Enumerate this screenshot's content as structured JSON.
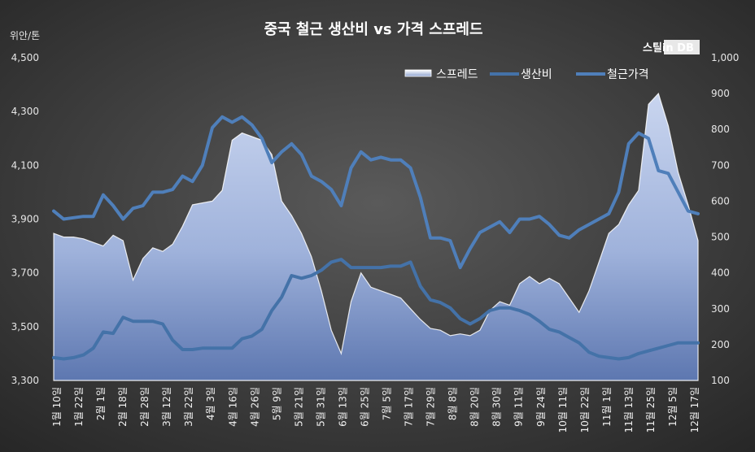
{
  "chart_data": {
    "type": "area",
    "title": "중국 철근 생산비 vs 가격 스프레드",
    "y_left_label": "위안/톤",
    "watermark": "스틸in DB",
    "y_left": {
      "min": 3300,
      "max": 4500,
      "ticks": [
        "3,300",
        "3,500",
        "3,700",
        "3,900",
        "4,100",
        "4,300",
        "4,500"
      ]
    },
    "y_right": {
      "min": 100,
      "max": 1000,
      "ticks": [
        "100",
        "200",
        "300",
        "400",
        "500",
        "600",
        "700",
        "800",
        "900",
        "1,000"
      ]
    },
    "x_ticks": [
      "1월 10일",
      "1월 22일",
      "2월 1일",
      "2월 18일",
      "2월 28일",
      "3월 12일",
      "3월 22일",
      "4월 3일",
      "4월 16일",
      "4월 26일",
      "5월 9일",
      "5월 21일",
      "5월 31일",
      "6월 13일",
      "6월 25일",
      "7월 5일",
      "7월 17일",
      "7월 29일",
      "8월 8일",
      "8월 20일",
      "8월 30일",
      "9월 11일",
      "9월 24일",
      "10월 11일",
      "10월 22일",
      "11월 1일",
      "11월 13일",
      "11월 25일",
      "12월 5일",
      "12월 17일"
    ],
    "series": [
      {
        "name": "스프레드",
        "kind": "area",
        "axis": "right",
        "color": "#b8c7e6",
        "values": [
          510,
          500,
          500,
          495,
          485,
          475,
          505,
          490,
          380,
          440,
          470,
          460,
          480,
          530,
          590,
          595,
          600,
          630,
          770,
          790,
          780,
          770,
          730,
          600,
          560,
          510,
          445,
          350,
          240,
          175,
          320,
          400,
          360,
          350,
          340,
          330,
          300,
          270,
          245,
          240,
          225,
          230,
          225,
          240,
          295,
          320,
          310,
          370,
          390,
          370,
          385,
          370,
          330,
          290,
          350,
          430,
          510,
          535,
          590,
          630,
          870,
          900,
          810,
          680,
          590,
          490
        ]
      },
      {
        "name": "생산비",
        "kind": "line",
        "axis": "left",
        "color": "#4472a8",
        "values": [
          3385,
          3380,
          3385,
          3395,
          3420,
          3480,
          3475,
          3535,
          3520,
          3520,
          3520,
          3510,
          3450,
          3415,
          3415,
          3420,
          3420,
          3420,
          3420,
          3455,
          3465,
          3490,
          3560,
          3610,
          3690,
          3680,
          3690,
          3710,
          3740,
          3750,
          3720,
          3720,
          3720,
          3720,
          3725,
          3725,
          3740,
          3650,
          3600,
          3590,
          3570,
          3530,
          3510,
          3530,
          3560,
          3570,
          3570,
          3560,
          3545,
          3520,
          3490,
          3480,
          3460,
          3440,
          3405,
          3390,
          3385,
          3380,
          3385,
          3400,
          3410,
          3420,
          3430,
          3440,
          3440,
          3440
        ]
      },
      {
        "name": "철근가격",
        "kind": "line",
        "axis": "left",
        "color": "#4f7fba",
        "values": [
          3930,
          3900,
          3905,
          3910,
          3910,
          3990,
          3950,
          3900,
          3940,
          3950,
          4000,
          4000,
          4010,
          4060,
          4040,
          4100,
          4240,
          4280,
          4260,
          4280,
          4250,
          4200,
          4110,
          4150,
          4180,
          4140,
          4060,
          4040,
          4010,
          3950,
          4090,
          4150,
          4120,
          4130,
          4120,
          4120,
          4090,
          3980,
          3830,
          3830,
          3820,
          3720,
          3790,
          3850,
          3870,
          3890,
          3850,
          3900,
          3900,
          3910,
          3880,
          3840,
          3830,
          3860,
          3880,
          3900,
          3920,
          4000,
          4180,
          4220,
          4200,
          4080,
          4070,
          4000,
          3930,
          3920
        ]
      }
    ]
  }
}
